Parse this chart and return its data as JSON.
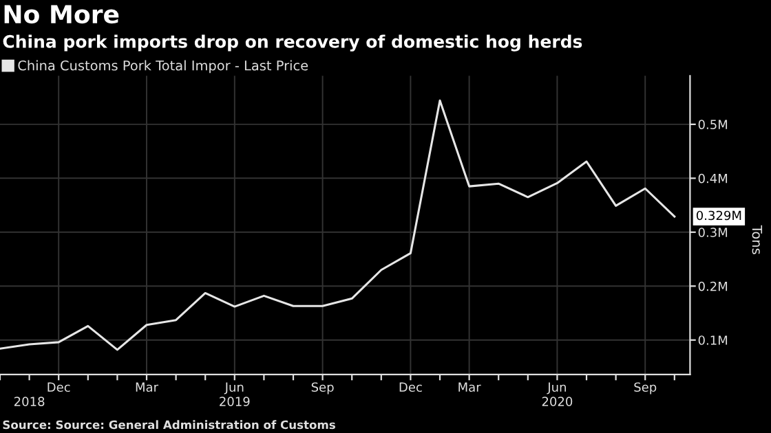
{
  "chart_data": {
    "type": "line",
    "title": "No More",
    "subtitle": "China pork imports drop on recovery of domestic hog herds",
    "ylabel": "Tons",
    "categories": [
      null,
      "\n2018",
      "Dec",
      null,
      null,
      "Mar",
      null,
      null,
      "Jun\n2019",
      null,
      null,
      "Sep",
      null,
      null,
      "Dec",
      null,
      "Mar",
      null,
      null,
      "Jun\n2020",
      null,
      null,
      "Sep",
      null
    ],
    "series": [
      {
        "name": "China Customs Pork Total Impor - Last Price",
        "color": "#e6e6e6",
        "values": [
          84000,
          92000,
          96000,
          126000,
          82000,
          128000,
          137000,
          187000,
          162000,
          182000,
          163000,
          163000,
          177000,
          230000,
          261000,
          544000,
          385000,
          390000,
          365000,
          391000,
          431000,
          349000,
          381000,
          329000
        ],
        "value_labels": [
          null,
          null,
          null,
          null,
          null,
          null,
          null,
          null,
          null,
          null,
          null,
          null,
          null,
          null,
          null,
          null,
          null,
          null,
          null,
          null,
          null,
          null,
          null,
          "0.329M"
        ]
      }
    ],
    "ylim": [
      36000,
      590000
    ],
    "yticks": [
      {
        "value": 100000,
        "label": "0.1M"
      },
      {
        "value": 200000,
        "label": "0.2M"
      },
      {
        "value": 300000,
        "label": "0.3M"
      },
      {
        "value": 400000,
        "label": "0.4M"
      },
      {
        "value": 500000,
        "label": "0.5M"
      }
    ],
    "grid": true,
    "legend": "top left",
    "annotations": [
      "Source: Source: General Administration of Customs"
    ]
  }
}
